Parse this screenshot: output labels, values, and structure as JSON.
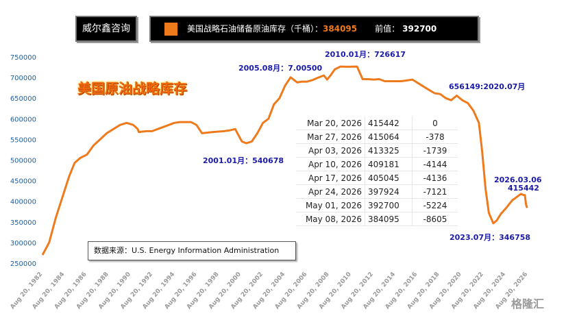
{
  "header": {
    "brand": "威尔鑫咨询",
    "legend_series": "美国战略石油储备原油库存（千桶）：",
    "legend_latest": "384095",
    "legend_prev_label": "前值：",
    "legend_prev": "392700"
  },
  "watermark": "格隆汇",
  "colors": {
    "series": "#ee7a1c",
    "annotation": "#1a1aa6",
    "axis_tick": "#1f5fa0",
    "header_bg": "#000000"
  },
  "chart_data": {
    "type": "line",
    "title": "美国原油战略库存",
    "yticks": [
      "750000",
      "700000",
      "650000",
      "600000",
      "550000",
      "500000",
      "450000",
      "400000",
      "350000",
      "300000",
      "250000"
    ],
    "ylim": [
      250000,
      750000
    ],
    "xlim": [
      1982.6,
      2026.4
    ],
    "xticks": [
      "Aug 20, 1982",
      "Aug 20, 1984",
      "Aug 20, 1986",
      "Aug 20, 1988",
      "Aug 20, 1990",
      "Aug 20, 1992",
      "Aug 20, 1994",
      "Aug 20, 1996",
      "Aug 20, 1998",
      "Aug 20, 2000",
      "Aug 20, 2002",
      "Aug 20, 2004",
      "Aug 20, 2006",
      "Aug 20, 2008",
      "Aug 20, 2010",
      "Aug 20, 2012",
      "Aug 20, 2014",
      "Aug 20, 2016",
      "Aug 20, 2018",
      "Aug 20, 2020",
      "Aug 20, 2022",
      "Aug 20, 2024",
      "Aug 20, 2026"
    ],
    "series": [
      {
        "x": [
          1982.6,
          1983.2,
          1983.8,
          1984.4,
          1985.0,
          1985.5,
          1986.0,
          1986.6,
          1987.2,
          1987.8,
          1988.4,
          1989.0,
          1989.6,
          1990.2,
          1990.8,
          1991.2,
          1991.3,
          1992.0,
          1992.5,
          1993.0,
          1993.5,
          1994.0,
          1994.5,
          1995.0,
          1996.0,
          1996.5,
          1997.0,
          1998.0,
          1999.0,
          1999.5,
          2000.0,
          2000.3,
          2000.6,
          2001.0,
          2001.5,
          2002.0,
          2002.5,
          2003.0,
          2003.5,
          2004.0,
          2004.5,
          2005.0,
          2005.6,
          2006.0,
          2006.5,
          2007.0,
          2007.5,
          2008.0,
          2008.3,
          2008.6,
          2009.0,
          2009.5,
          2010.0,
          2011.0,
          2011.5,
          2012.0,
          2012.5,
          2013.0,
          2013.5,
          2014.0,
          2015.0,
          2016.0,
          2017.0,
          2017.5,
          2018.0,
          2018.5,
          2019.0,
          2019.5,
          2020.0,
          2020.5,
          2021.0,
          2021.5,
          2022.0,
          2022.3,
          2022.6,
          2022.9,
          2023.3,
          2023.6,
          2024.0,
          2024.5,
          2025.0,
          2025.4,
          2025.8,
          2026.0,
          2026.15,
          2026.25,
          2026.35
        ],
        "y": [
          270000,
          300000,
          360000,
          410000,
          460000,
          493000,
          505000,
          513000,
          535000,
          550000,
          565000,
          575000,
          585000,
          590000,
          585000,
          575000,
          568000,
          570000,
          570000,
          575000,
          580000,
          585000,
          590000,
          592000,
          592000,
          585000,
          565000,
          568000,
          570000,
          572000,
          575000,
          560000,
          545000,
          540678,
          545000,
          565000,
          590000,
          600000,
          635000,
          650000,
          680000,
          700500,
          688000,
          690000,
          690000,
          694000,
          700000,
          705000,
          695000,
          705000,
          720000,
          726617,
          726000,
          726617,
          696000,
          696000,
          695000,
          696000,
          691000,
          691000,
          691000,
          695000,
          678000,
          670000,
          662000,
          660000,
          650000,
          645000,
          656149,
          645000,
          638000,
          620000,
          590000,
          520000,
          430000,
          372000,
          346758,
          353000,
          370000,
          385000,
          402000,
          410000,
          418000,
          415442,
          415000,
          392700,
          384095
        ]
      }
    ],
    "annotations": [
      {
        "text": "2010.01月：726617"
      },
      {
        "text": "2005.08月：7.00500"
      },
      {
        "text": "656149:2020.07月"
      },
      {
        "text": "2001.01月：540678"
      },
      {
        "text": "2026.03.06"
      },
      {
        "text": "415442"
      },
      {
        "text": "2023.07月：346758"
      }
    ]
  },
  "table": {
    "rows": [
      {
        "date": "Mar 20, 2026",
        "value": "415442",
        "change": "0"
      },
      {
        "date": "Mar 27, 2026",
        "value": "415064",
        "change": "-378"
      },
      {
        "date": "Apr 03, 2026",
        "value": "413325",
        "change": "-1739"
      },
      {
        "date": "Apr 10, 2026",
        "value": "409181",
        "change": "-4144"
      },
      {
        "date": "Apr 17, 2026",
        "value": "405045",
        "change": "-4136"
      },
      {
        "date": "Apr 24, 2026",
        "value": "397924",
        "change": "-7121"
      },
      {
        "date": "May 01, 2026",
        "value": "392700",
        "change": "-5224"
      },
      {
        "date": "May 08, 2026",
        "value": "384095",
        "change": "-8605"
      }
    ]
  },
  "source_note": "数据来源：U.S. Energy Information Administration"
}
